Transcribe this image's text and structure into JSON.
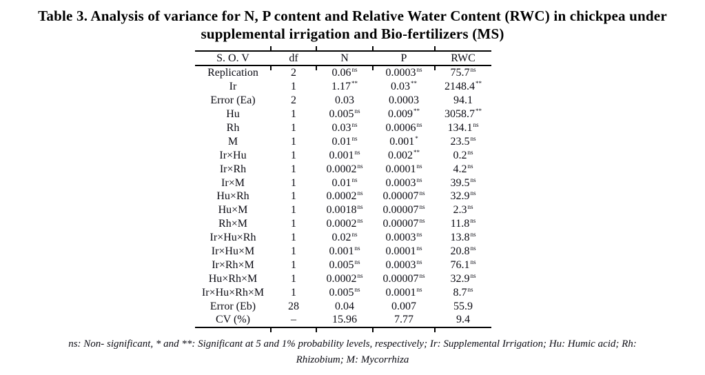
{
  "title": {
    "line1": "Table 3. Analysis of variance for N, P content and Relative Water Content (RWC) in chickpea under",
    "line2": "supplemental irrigation and Bio-fertilizers (MS)"
  },
  "table": {
    "headers": [
      "S. O. V",
      "df",
      "N",
      "P",
      "RWC"
    ],
    "rows": [
      {
        "sov": "Replication",
        "df": "2",
        "n": "0.06",
        "n_sig": "ns",
        "p": "0.0003",
        "p_sig": "ns",
        "rwc": "75.7",
        "rwc_sig": "ns"
      },
      {
        "sov": "Ir",
        "df": "1",
        "n": "1.17",
        "n_sig": "**",
        "p": "0.03",
        "p_sig": "**",
        "rwc": "2148.4",
        "rwc_sig": "**"
      },
      {
        "sov": "Error (Ea)",
        "df": "2",
        "n": "0.03",
        "n_sig": "",
        "p": "0.0003",
        "p_sig": "",
        "rwc": "94.1",
        "rwc_sig": ""
      },
      {
        "sov": "Hu",
        "df": "1",
        "n": "0.005",
        "n_sig": "ns",
        "p": "0.009",
        "p_sig": "**",
        "rwc": "3058.7",
        "rwc_sig": "**"
      },
      {
        "sov": "Rh",
        "df": "1",
        "n": "0.03",
        "n_sig": "ns",
        "p": "0.0006",
        "p_sig": "ns",
        "rwc": "134.1",
        "rwc_sig": "ns"
      },
      {
        "sov": "M",
        "df": "1",
        "n": "0.01",
        "n_sig": "ns",
        "p": "0.001",
        "p_sig": "*",
        "rwc": "23.5",
        "rwc_sig": "ns"
      },
      {
        "sov": "Ir×Hu",
        "df": "1",
        "n": "0.001",
        "n_sig": "ns",
        "p": "0.002",
        "p_sig": "**",
        "rwc": "0.2",
        "rwc_sig": "ns"
      },
      {
        "sov": "Ir×Rh",
        "df": "1",
        "n": "0.0002",
        "n_sig": "ns",
        "p": "0.0001",
        "p_sig": "ns",
        "rwc": "4.2",
        "rwc_sig": "ns"
      },
      {
        "sov": "Ir×M",
        "df": "1",
        "n": "0.01",
        "n_sig": "ns",
        "p": "0.0003",
        "p_sig": "ns",
        "rwc": "39.5",
        "rwc_sig": "ns"
      },
      {
        "sov": "Hu×Rh",
        "df": "1",
        "n": "0.0002",
        "n_sig": "ns",
        "p": "0.00007",
        "p_sig": "ns",
        "rwc": "32.9",
        "rwc_sig": "ns"
      },
      {
        "sov": "Hu×M",
        "df": "1",
        "n": "0.0018",
        "n_sig": "ns",
        "p": "0.00007",
        "p_sig": "ns",
        "rwc": "2.3",
        "rwc_sig": "ns"
      },
      {
        "sov": "Rh×M",
        "df": "1",
        "n": "0.0002",
        "n_sig": "ns",
        "p": "0.00007",
        "p_sig": "ns",
        "rwc": "11.8",
        "rwc_sig": "ns"
      },
      {
        "sov": "Ir×Hu×Rh",
        "df": "1",
        "n": "0.02",
        "n_sig": "ns",
        "p": "0.0003",
        "p_sig": "ns",
        "rwc": "13.8",
        "rwc_sig": "ns"
      },
      {
        "sov": "Ir×Hu×M",
        "df": "1",
        "n": "0.001",
        "n_sig": "ns",
        "p": "0.0001",
        "p_sig": "ns",
        "rwc": "20.8",
        "rwc_sig": "ns"
      },
      {
        "sov": "Ir×Rh×M",
        "df": "1",
        "n": "0.005",
        "n_sig": "ns",
        "p": "0.0003",
        "p_sig": "ns",
        "rwc": "76.1",
        "rwc_sig": "ns"
      },
      {
        "sov": "Hu×Rh×M",
        "df": "1",
        "n": "0.0002",
        "n_sig": "ns",
        "p": "0.00007",
        "p_sig": "ns",
        "rwc": "32.9",
        "rwc_sig": "ns"
      },
      {
        "sov": "Ir×Hu×Rh×M",
        "df": "1",
        "n": "0.005",
        "n_sig": "ns",
        "p": "0.0001",
        "p_sig": "ns",
        "rwc": "8.7",
        "rwc_sig": "ns"
      },
      {
        "sov": "Error (Eb)",
        "df": "28",
        "n": "0.04",
        "n_sig": "",
        "p": "0.007",
        "p_sig": "",
        "rwc": "55.9",
        "rwc_sig": ""
      },
      {
        "sov": "CV (%)",
        "df": "–",
        "n": "15.96",
        "n_sig": "",
        "p": "7.77",
        "p_sig": "",
        "rwc": "9.4",
        "rwc_sig": ""
      }
    ]
  },
  "footnote": {
    "line1": "ns: Non- significant, * and **: Significant at 5 and 1% probability levels, respectively; Ir:  Supplemental Irrigation; Hu: Humic acid; Rh:",
    "line2": "Rhizobium; M: Mycorrhiza"
  }
}
